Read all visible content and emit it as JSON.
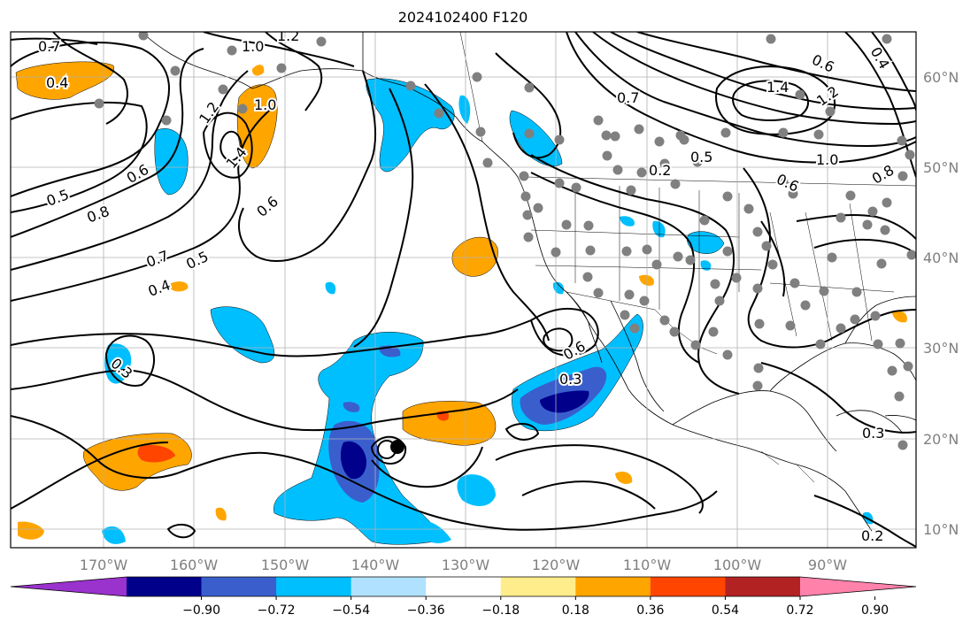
{
  "title": "2024102400 F120",
  "longitude_labels": [
    "170°W",
    "160°W",
    "150°W",
    "140°W",
    "130°W",
    "120°W",
    "110°W",
    "100°W",
    "90°W"
  ],
  "latitude_labels": [
    "60°N",
    "50°N",
    "40°N",
    "30°N",
    "20°N",
    "10°N"
  ],
  "colorbar": {
    "tick_labels": [
      "−0.90",
      "−0.72",
      "−0.54",
      "−0.36",
      "−0.18",
      "0.18",
      "0.36",
      "0.54",
      "0.72",
      "0.90"
    ],
    "colors": [
      "#9a32cd",
      "#00008b",
      "#3a5fcd",
      "#00bfff",
      "#b0e2ff",
      "#ffffff",
      "#ffec8b",
      "#ffa500",
      "#ff4500",
      "#b22222",
      "#ff82ab"
    ]
  },
  "contour_labels": [
    "0.7",
    "1.0",
    "1.2",
    "0.4",
    "1.2",
    "1.0",
    "1.4",
    "0.6",
    "0.5",
    "0.8",
    "0.6",
    "0.7",
    "0.5",
    "0.4",
    "0.3",
    "0.6",
    "0.3",
    "0.7",
    "0.2",
    "0.5",
    "1.4",
    "1.2",
    "0.6",
    "1.0",
    "0.6",
    "0.8",
    "0.3",
    "0.2",
    "0.4"
  ],
  "colors": {
    "land_outline": "#000000",
    "contour": "#000000",
    "station_dot": "#808080",
    "grid": "#b0b0b0"
  }
}
